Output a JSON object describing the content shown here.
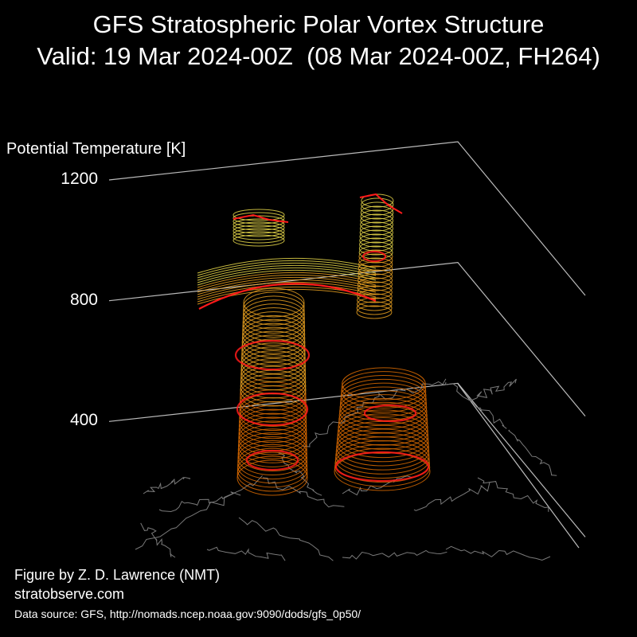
{
  "chart_data": {
    "type": "3d-isosurface",
    "title": "GFS Stratospheric Polar Vortex Structure",
    "subtitle": "Valid: 19 Mar 2024-00Z  (08 Mar 2024-00Z, FH264)",
    "zlabel": "Potential Temperature [K]",
    "z_ticks": [
      400,
      800,
      1200
    ],
    "zlim": [
      0,
      1200
    ],
    "colors": {
      "background": "#000000",
      "frame": "#bbbbbb",
      "coast": "#7a7a7a",
      "contour_low": "#d96a00",
      "contour_mid": "#e8a020",
      "contour_high": "#e8d84a",
      "edge": "#ff1a1a"
    }
  },
  "credit": "Figure by Z. D. Lawrence (NMT)",
  "website": "stratobserve.com",
  "data_source": "Data source: GFS, http://nomads.ncep.noaa.gov:9090/dods/gfs_0p50/"
}
